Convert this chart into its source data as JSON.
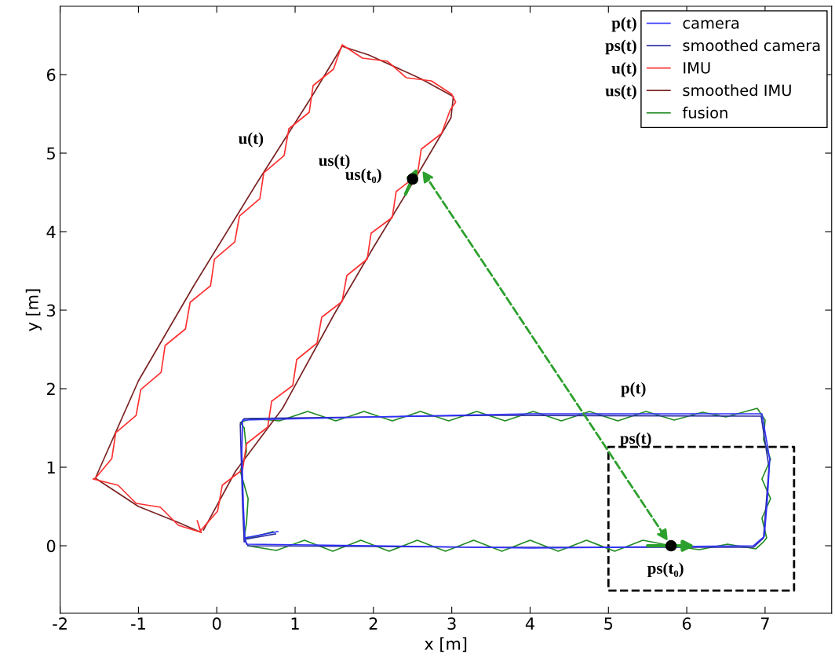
{
  "chart_data": {
    "type": "line",
    "xlabel": "x [m]",
    "ylabel": "y [m]",
    "xlim": [
      -2,
      7.85
    ],
    "ylim": [
      -0.86,
      6.87
    ],
    "xticks": [
      -2,
      -1,
      0,
      1,
      2,
      3,
      4,
      5,
      6,
      7
    ],
    "yticks": [
      0,
      1,
      2,
      3,
      4,
      5,
      6
    ],
    "grid": false,
    "legend": "top right",
    "marker": "none",
    "line_style": "solid",
    "series": [
      {
        "name": "camera",
        "color": "#3030ff",
        "x": [
          0.78,
          0.36,
          0.38,
          2.0,
          4.0,
          6.85,
          6.99,
          7.03,
          7.06,
          6.96,
          4.0,
          2.0,
          0.33,
          0.32,
          0.34,
          0.36
        ],
        "values": [
          0.18,
          0.1,
          0.02,
          0.0,
          -0.03,
          0.0,
          0.12,
          0.6,
          1.1,
          1.68,
          1.68,
          1.64,
          1.6,
          1.2,
          0.5,
          0.08
        ]
      },
      {
        "name": "smoothed camera",
        "color": "#2b2ba0",
        "x": [
          0.75,
          0.35,
          0.4,
          3.5,
          6.85,
          6.98,
          7.05,
          6.95,
          3.5,
          0.35,
          0.3,
          0.33,
          0.35
        ],
        "values": [
          0.15,
          0.08,
          0.0,
          -0.02,
          -0.02,
          0.1,
          1.0,
          1.65,
          1.66,
          1.62,
          1.55,
          0.5,
          0.05
        ]
      },
      {
        "name": "IMU",
        "color": "#ff3030",
        "x": [
          -0.2,
          0.01,
          0.07,
          0.33,
          0.38,
          0.65,
          0.7,
          0.97,
          1.02,
          1.28,
          1.34,
          1.6,
          1.66,
          1.92,
          1.97,
          2.24,
          2.29,
          2.56,
          2.61,
          2.87,
          2.98,
          3.05,
          3.0,
          2.74,
          2.42,
          2.18,
          1.86,
          1.6,
          1.49,
          1.23,
          1.18,
          0.92,
          0.86,
          0.6,
          0.55,
          0.29,
          0.23,
          -0.03,
          -0.08,
          -0.34,
          -0.4,
          -0.66,
          -0.71,
          -0.97,
          -1.03,
          -1.29,
          -1.34,
          -1.55,
          -1.58,
          -1.26,
          -1.03,
          -0.72,
          -0.49,
          -0.2,
          -0.25,
          -0.21
        ],
        "values": [
          0.2,
          0.44,
          0.77,
          0.97,
          1.3,
          1.51,
          1.84,
          2.04,
          2.37,
          2.58,
          2.91,
          3.11,
          3.44,
          3.65,
          3.98,
          4.18,
          4.51,
          4.72,
          5.05,
          5.25,
          5.55,
          5.65,
          5.75,
          5.92,
          5.96,
          6.17,
          6.21,
          6.38,
          6.07,
          5.86,
          5.52,
          5.31,
          4.97,
          4.75,
          4.42,
          4.2,
          3.87,
          3.65,
          3.31,
          3.1,
          2.76,
          2.55,
          2.21,
          1.99,
          1.66,
          1.44,
          1.11,
          0.86,
          0.85,
          0.77,
          0.54,
          0.49,
          0.26,
          0.17,
          0.32,
          0.19
        ]
      },
      {
        "name": "smoothed IMU",
        "color": "#7a2222",
        "x": [
          -0.17,
          0.24,
          0.84,
          1.5,
          2.0,
          2.5,
          2.99,
          3.02,
          2.6,
          1.94,
          1.6,
          1.2,
          0.5,
          -0.3,
          -1.0,
          -1.55,
          -1.0,
          -0.5,
          -0.2
        ],
        "values": [
          0.2,
          0.95,
          1.75,
          2.95,
          3.8,
          4.62,
          5.45,
          5.72,
          5.95,
          6.25,
          6.36,
          5.7,
          4.6,
          3.3,
          2.1,
          0.86,
          0.5,
          0.3,
          0.17
        ]
      },
      {
        "name": "fusion",
        "color": "#228b22",
        "x": [
          0.4,
          0.76,
          1.12,
          1.48,
          1.84,
          2.2,
          2.56,
          2.92,
          3.28,
          3.64,
          4.0,
          4.36,
          4.72,
          5.08,
          5.44,
          5.8,
          6.16,
          6.52,
          6.88,
          6.98,
          7.02,
          6.96,
          7.07,
          6.96,
          7.07,
          6.98,
          7.0,
          6.9,
          6.5,
          6.2,
          5.84,
          5.48,
          5.12,
          4.76,
          4.4,
          4.04,
          3.68,
          3.32,
          2.96,
          2.6,
          2.24,
          1.88,
          1.52,
          1.16,
          0.8,
          0.44,
          0.3,
          0.35,
          0.38,
          0.3,
          0.4,
          0.38,
          0.35,
          0.5,
          0.72,
          0.35
        ],
        "values": [
          0.0,
          -0.06,
          0.07,
          -0.07,
          0.07,
          -0.07,
          0.07,
          -0.07,
          0.07,
          -0.07,
          0.07,
          -0.07,
          0.07,
          -0.07,
          0.07,
          0.0,
          -0.05,
          0.02,
          -0.04,
          0.05,
          0.1,
          0.35,
          0.6,
          0.85,
          1.1,
          1.35,
          1.6,
          1.75,
          1.64,
          1.7,
          1.6,
          1.71,
          1.59,
          1.71,
          1.59,
          1.71,
          1.59,
          1.71,
          1.59,
          1.71,
          1.59,
          1.71,
          1.59,
          1.71,
          1.59,
          1.62,
          1.57,
          1.5,
          1.2,
          0.95,
          0.6,
          0.3,
          0.1,
          0.12,
          0.18,
          0.08
        ]
      },
      {
        "color": "#000000",
        "line_style": "dashed",
        "x": [
          5.0,
          7.37,
          7.37,
          5.0,
          5.0
        ],
        "values": [
          -0.57,
          -0.57,
          1.26,
          1.26,
          -0.56
        ]
      },
      {
        "type": "scatter",
        "color": "#000000",
        "marker": "circle",
        "x": [
          2.5,
          5.8
        ],
        "values": [
          4.67,
          0.0
        ]
      }
    ],
    "annotations": [
      "p(t)",
      "ps(t)",
      "u(t)",
      "us(t)",
      {
        "text": "u(t)",
        "x": 0.91,
        "y": 5.17
      },
      {
        "text": "us(t)",
        "x": 0.75,
        "y": 4.89
      },
      {
        "text": "us(t₀)",
        "x": 2.5,
        "y": 4.67
      },
      {
        "text": "p(t)",
        "x": 5.32,
        "y": 1.67
      },
      {
        "text": "ps(t)",
        "x": 5.35,
        "y": 1.67
      },
      {
        "text": "ps(t₀)",
        "x": 5.8,
        "y": 0.0
      }
    ]
  }
}
